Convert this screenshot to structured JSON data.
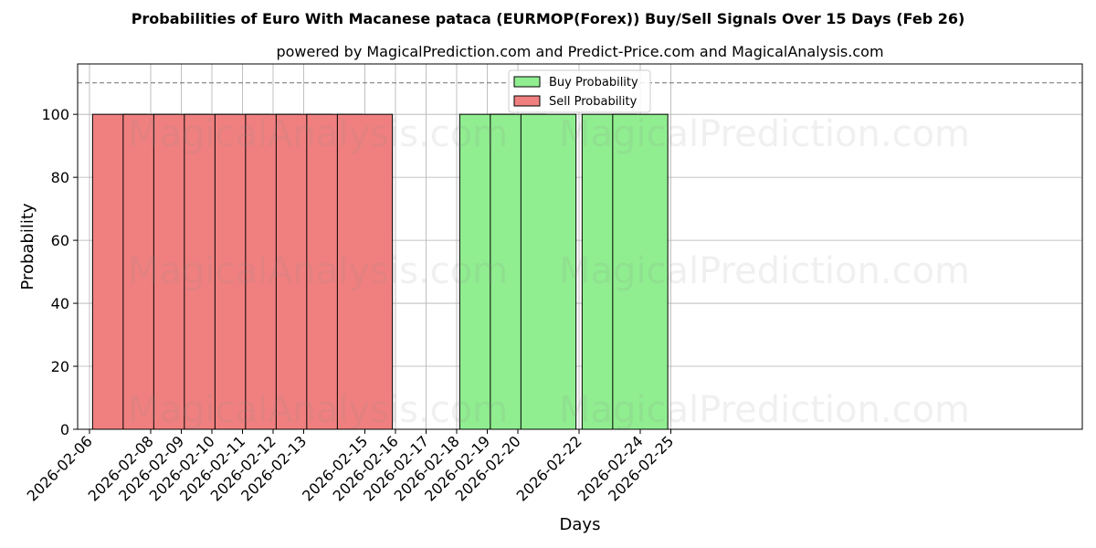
{
  "chart_data": {
    "type": "bar",
    "title": "Probabilities of Euro With Macanese pataca (EURMOP(Forex)) Buy/Sell Signals Over 15 Days (Feb 26)",
    "subtitle": "powered by MagicalPrediction.com and Predict-Price.com and MagicalAnalysis.com",
    "xlabel": "Days",
    "ylabel": "Probability",
    "ylim": [
      0,
      116
    ],
    "yticks": [
      0,
      20,
      40,
      60,
      80,
      100
    ],
    "reference_line": 110,
    "grid": true,
    "legend_position": "top-center",
    "x_ticks": [
      "2026-02-06",
      "2026-02-08",
      "2026-02-09",
      "2026-02-10",
      "2026-02-11",
      "2026-02-12",
      "2026-02-13",
      "2026-02-15",
      "2026-02-16",
      "2026-02-17",
      "2026-02-18",
      "2026-02-19",
      "2026-02-20",
      "2026-02-22",
      "2026-02-24",
      "2026-02-25"
    ],
    "series": [
      {
        "name": "Buy Probability",
        "color": "#90ee90",
        "points": [
          {
            "x": "2026-02-19",
            "y": 100
          },
          {
            "x": "2026-02-20",
            "y": 100
          },
          {
            "x": "2026-02-21",
            "y": 100
          },
          {
            "x": "2026-02-23",
            "y": 100
          },
          {
            "x": "2026-02-24",
            "y": 100
          }
        ]
      },
      {
        "name": "Sell Probability",
        "color": "#f08080",
        "points": [
          {
            "x": "2026-02-07",
            "y": 100
          },
          {
            "x": "2026-02-08",
            "y": 100
          },
          {
            "x": "2026-02-09",
            "y": 100
          },
          {
            "x": "2026-02-10",
            "y": 100
          },
          {
            "x": "2026-02-11",
            "y": 100
          },
          {
            "x": "2026-02-12",
            "y": 100
          },
          {
            "x": "2026-02-13",
            "y": 100
          },
          {
            "x": "2026-02-14",
            "y": 100
          },
          {
            "x": "2026-02-15",
            "y": 100
          }
        ]
      }
    ],
    "watermarks": [
      "MagicalAnalysis.com",
      "MagicalPrediction.com"
    ]
  }
}
